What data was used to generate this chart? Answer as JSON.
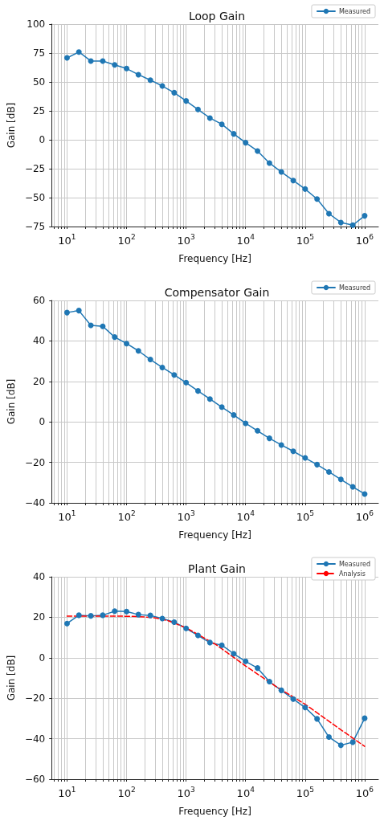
{
  "chart_data": [
    {
      "type": "line",
      "title": "Loop Gain",
      "xlabel": "Frequency [Hz]",
      "ylabel": "Gain [dB]",
      "log": "x",
      "grid": true,
      "legend": "top right",
      "xlim": [
        5.5,
        1700000
      ],
      "ylim": [
        -75,
        100
      ],
      "yticks": [
        -75,
        -50,
        -25,
        0,
        25,
        50,
        75,
        100
      ],
      "xticks": [
        {
          "value": 6,
          "label": null
        },
        {
          "value": 7,
          "label": null
        },
        {
          "value": 8,
          "label": null
        },
        {
          "value": 9,
          "label": null
        },
        {
          "value": 10,
          "label": "10$^{1}$"
        },
        {
          "value": 20,
          "label": null
        },
        {
          "value": 30,
          "label": null
        },
        {
          "value": 40,
          "label": null
        },
        {
          "value": 50,
          "label": null
        },
        {
          "value": 60,
          "label": null
        },
        {
          "value": 70,
          "label": null
        },
        {
          "value": 80,
          "label": null
        },
        {
          "value": 90,
          "label": null
        },
        {
          "value": 100,
          "label": "10$^{2}$"
        },
        {
          "value": 200,
          "label": null
        },
        {
          "value": 300,
          "label": null
        },
        {
          "value": 400,
          "label": null
        },
        {
          "value": 500,
          "label": null
        },
        {
          "value": 600,
          "label": null
        },
        {
          "value": 700,
          "label": null
        },
        {
          "value": 800,
          "label": null
        },
        {
          "value": 900,
          "label": null
        },
        {
          "value": 1000,
          "label": "10$^{3}$"
        },
        {
          "value": 2000,
          "label": null
        },
        {
          "value": 3000,
          "label": null
        },
        {
          "value": 4000,
          "label": null
        },
        {
          "value": 5000,
          "label": null
        },
        {
          "value": 6000,
          "label": null
        },
        {
          "value": 7000,
          "label": null
        },
        {
          "value": 8000,
          "label": null
        },
        {
          "value": 9000,
          "label": null
        },
        {
          "value": 10000,
          "label": "10$^{4}$"
        },
        {
          "value": 20000,
          "label": null
        },
        {
          "value": 30000,
          "label": null
        },
        {
          "value": 40000,
          "label": null
        },
        {
          "value": 50000,
          "label": null
        },
        {
          "value": 60000,
          "label": null
        },
        {
          "value": 70000,
          "label": null
        },
        {
          "value": 80000,
          "label": null
        },
        {
          "value": 90000,
          "label": null
        },
        {
          "value": 100000,
          "label": "10$^{5}$"
        },
        {
          "value": 200000,
          "label": null
        },
        {
          "value": 300000,
          "label": null
        },
        {
          "value": 400000,
          "label": null
        },
        {
          "value": 500000,
          "label": null
        },
        {
          "value": 600000,
          "label": null
        },
        {
          "value": 700000,
          "label": null
        },
        {
          "value": 800000,
          "label": null
        },
        {
          "value": 900000,
          "label": null
        },
        {
          "value": 1000000,
          "label": "10$^{6}$"
        }
      ],
      "x": [
        10,
        15.8,
        25.1,
        39.8,
        63.1,
        100,
        158,
        251,
        398,
        631,
        1000,
        1585,
        2512,
        3981,
        6310,
        10000,
        15850,
        25120,
        39810,
        63100,
        100000,
        158500,
        251200,
        398100,
        631000,
        1000000
      ],
      "series": [
        {
          "name": "Measured",
          "color": "#1f77b4",
          "marker": "circle",
          "line_style": "solid",
          "values": [
            70.8,
            75.9,
            68.1,
            68,
            64.8,
            61.6,
            56.3,
            51.6,
            46.5,
            40.7,
            33.6,
            26.2,
            18.8,
            13.4,
            5.1,
            -2.5,
            -9.7,
            -20.1,
            -27.8,
            -35.2,
            -42.6,
            -51.2,
            -63.9,
            -71.5,
            -73.8,
            -65.7
          ]
        }
      ]
    },
    {
      "type": "line",
      "title": "Compensator Gain",
      "xlabel": "Frequency [Hz]",
      "ylabel": "Gain [dB]",
      "log": "x",
      "grid": true,
      "legend": "top right",
      "xlim": [
        5.5,
        1700000
      ],
      "ylim": [
        -40,
        60
      ],
      "yticks": [
        -40,
        -20,
        0,
        20,
        40,
        60
      ],
      "xticks": [
        {
          "value": 6,
          "label": null
        },
        {
          "value": 7,
          "label": null
        },
        {
          "value": 8,
          "label": null
        },
        {
          "value": 9,
          "label": null
        },
        {
          "value": 10,
          "label": "10$^{1}$"
        },
        {
          "value": 20,
          "label": null
        },
        {
          "value": 30,
          "label": null
        },
        {
          "value": 40,
          "label": null
        },
        {
          "value": 50,
          "label": null
        },
        {
          "value": 60,
          "label": null
        },
        {
          "value": 70,
          "label": null
        },
        {
          "value": 80,
          "label": null
        },
        {
          "value": 90,
          "label": null
        },
        {
          "value": 100,
          "label": "10$^{2}$"
        },
        {
          "value": 200,
          "label": null
        },
        {
          "value": 300,
          "label": null
        },
        {
          "value": 400,
          "label": null
        },
        {
          "value": 500,
          "label": null
        },
        {
          "value": 600,
          "label": null
        },
        {
          "value": 700,
          "label": null
        },
        {
          "value": 800,
          "label": null
        },
        {
          "value": 900,
          "label": null
        },
        {
          "value": 1000,
          "label": "10$^{3}$"
        },
        {
          "value": 2000,
          "label": null
        },
        {
          "value": 3000,
          "label": null
        },
        {
          "value": 4000,
          "label": null
        },
        {
          "value": 5000,
          "label": null
        },
        {
          "value": 6000,
          "label": null
        },
        {
          "value": 7000,
          "label": null
        },
        {
          "value": 8000,
          "label": null
        },
        {
          "value": 9000,
          "label": null
        },
        {
          "value": 10000,
          "label": "10$^{4}$"
        },
        {
          "value": 20000,
          "label": null
        },
        {
          "value": 30000,
          "label": null
        },
        {
          "value": 40000,
          "label": null
        },
        {
          "value": 50000,
          "label": null
        },
        {
          "value": 60000,
          "label": null
        },
        {
          "value": 70000,
          "label": null
        },
        {
          "value": 80000,
          "label": null
        },
        {
          "value": 90000,
          "label": null
        },
        {
          "value": 100000,
          "label": "10$^{5}$"
        },
        {
          "value": 200000,
          "label": null
        },
        {
          "value": 300000,
          "label": null
        },
        {
          "value": 400000,
          "label": null
        },
        {
          "value": 500000,
          "label": null
        },
        {
          "value": 600000,
          "label": null
        },
        {
          "value": 700000,
          "label": null
        },
        {
          "value": 800000,
          "label": null
        },
        {
          "value": 900000,
          "label": null
        },
        {
          "value": 1000000,
          "label": "10$^{6}$"
        }
      ],
      "x": [
        10,
        15.8,
        25.1,
        39.8,
        63.1,
        100,
        158,
        251,
        398,
        631,
        1000,
        1585,
        2512,
        3981,
        6310,
        10000,
        15850,
        25120,
        39810,
        63100,
        100000,
        158500,
        251200,
        398100,
        631000,
        1000000
      ],
      "series": [
        {
          "name": "Measured",
          "color": "#1f77b4",
          "marker": "circle",
          "line_style": "solid",
          "values": [
            54,
            55,
            47.7,
            47.2,
            41.9,
            38.7,
            35.1,
            30.8,
            26.9,
            23.2,
            19.4,
            15.3,
            11.3,
            7.3,
            3.4,
            -0.7,
            -4.4,
            -8.1,
            -11.4,
            -14.5,
            -17.8,
            -21.1,
            -24.7,
            -28.4,
            -32.1,
            -35.6
          ]
        }
      ]
    },
    {
      "type": "line",
      "title": "Plant Gain",
      "xlabel": "Frequency [Hz]",
      "ylabel": "Gain [dB]",
      "log": "x",
      "grid": true,
      "legend": "top right",
      "xlim": [
        5.5,
        1700000
      ],
      "ylim": [
        -60,
        40
      ],
      "yticks": [
        -60,
        -40,
        -20,
        0,
        20,
        40
      ],
      "xticks": [
        {
          "value": 6,
          "label": null
        },
        {
          "value": 7,
          "label": null
        },
        {
          "value": 8,
          "label": null
        },
        {
          "value": 9,
          "label": null
        },
        {
          "value": 10,
          "label": "10$^{1}$"
        },
        {
          "value": 20,
          "label": null
        },
        {
          "value": 30,
          "label": null
        },
        {
          "value": 40,
          "label": null
        },
        {
          "value": 50,
          "label": null
        },
        {
          "value": 60,
          "label": null
        },
        {
          "value": 70,
          "label": null
        },
        {
          "value": 80,
          "label": null
        },
        {
          "value": 90,
          "label": null
        },
        {
          "value": 100,
          "label": "10$^{2}$"
        },
        {
          "value": 200,
          "label": null
        },
        {
          "value": 300,
          "label": null
        },
        {
          "value": 400,
          "label": null
        },
        {
          "value": 500,
          "label": null
        },
        {
          "value": 600,
          "label": null
        },
        {
          "value": 700,
          "label": null
        },
        {
          "value": 800,
          "label": null
        },
        {
          "value": 900,
          "label": null
        },
        {
          "value": 1000,
          "label": "10$^{3}$"
        },
        {
          "value": 2000,
          "label": null
        },
        {
          "value": 3000,
          "label": null
        },
        {
          "value": 4000,
          "label": null
        },
        {
          "value": 5000,
          "label": null
        },
        {
          "value": 6000,
          "label": null
        },
        {
          "value": 7000,
          "label": null
        },
        {
          "value": 8000,
          "label": null
        },
        {
          "value": 9000,
          "label": null
        },
        {
          "value": 10000,
          "label": "10$^{4}$"
        },
        {
          "value": 20000,
          "label": null
        },
        {
          "value": 30000,
          "label": null
        },
        {
          "value": 40000,
          "label": null
        },
        {
          "value": 50000,
          "label": null
        },
        {
          "value": 60000,
          "label": null
        },
        {
          "value": 70000,
          "label": null
        },
        {
          "value": 80000,
          "label": null
        },
        {
          "value": 90000,
          "label": null
        },
        {
          "value": 100000,
          "label": "10$^{5}$"
        },
        {
          "value": 200000,
          "label": null
        },
        {
          "value": 300000,
          "label": null
        },
        {
          "value": 400000,
          "label": null
        },
        {
          "value": 500000,
          "label": null
        },
        {
          "value": 600000,
          "label": null
        },
        {
          "value": 700000,
          "label": null
        },
        {
          "value": 800000,
          "label": null
        },
        {
          "value": 900000,
          "label": null
        },
        {
          "value": 1000000,
          "label": "10$^{6}$"
        }
      ],
      "x": [
        10,
        15.8,
        25.1,
        39.8,
        63.1,
        100,
        158,
        251,
        398,
        631,
        1000,
        1585,
        2512,
        3981,
        6310,
        10000,
        15850,
        25120,
        39810,
        63100,
        100000,
        158500,
        251200,
        398100,
        631000,
        1000000
      ],
      "series": [
        {
          "name": "Measured",
          "color": "#1f77b4",
          "marker": "circle",
          "line_style": "solid",
          "values": [
            16.9,
            21,
            20.7,
            21,
            23,
            22.8,
            21.3,
            20.9,
            19.4,
            17.6,
            14.5,
            11,
            7.5,
            6.2,
            2,
            -1.8,
            -5.1,
            -11.8,
            -16.1,
            -20.4,
            -24.6,
            -30.2,
            -39.2,
            -43.2,
            -41.7,
            -29.9
          ]
        },
        {
          "name": "Analysis",
          "color": "#ff0000",
          "marker": "none",
          "line_style": "dashed",
          "x": [
            10,
            31.6,
            100,
            200,
            316,
            500,
            1000,
            2000,
            3162,
            10000,
            31623,
            100000,
            316228,
            1000000
          ],
          "values": [
            20.6,
            20.6,
            20.5,
            20.2,
            19.6,
            18.3,
            14.8,
            9.8,
            6.5,
            -4.1,
            -14,
            -23,
            -33.5,
            -43.8
          ]
        }
      ]
    }
  ]
}
